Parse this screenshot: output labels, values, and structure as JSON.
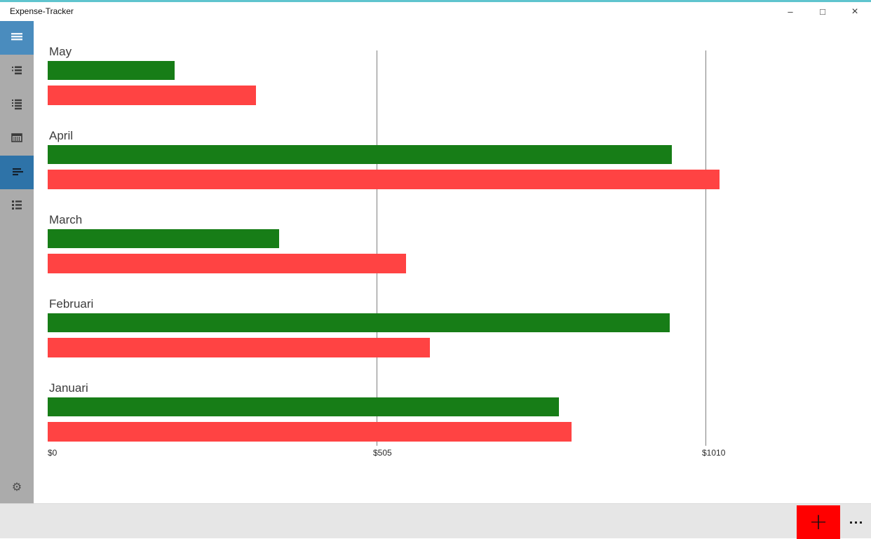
{
  "titlebar": {
    "title": "Expense-Tracker",
    "minimize_glyph": "–",
    "maximize_glyph": "□",
    "close_glyph": "×"
  },
  "colors": {
    "accent_top_border": "#5fc4ce",
    "sidebar_bg": "#ababab",
    "menu_button_bg": "#4a8cbe",
    "selected_item_bg": "#2e73a8",
    "bar_green": "#177d17",
    "bar_red": "#ff4343",
    "add_button_bg": "#ff0000",
    "commandbar_bg": "#e6e6e6",
    "gridline": "#7f7f7f"
  },
  "sidebar": {
    "icons": [
      "hamburger-menu",
      "bulleted-list",
      "detailed-list",
      "calendar",
      "bar-chart",
      "ordered-list",
      "settings-gear"
    ],
    "selected_index": 4
  },
  "chart_data": {
    "type": "bar",
    "orientation": "horizontal",
    "title": "",
    "categories": [
      "May",
      "April",
      "March",
      "Februari",
      "Januari"
    ],
    "series": [
      {
        "id": "green",
        "color": "#177d17",
        "values": [
          195,
          958,
          355,
          955,
          785
        ]
      },
      {
        "id": "red",
        "color": "#ff4343",
        "values": [
          320,
          1031,
          550,
          587,
          804
        ]
      }
    ],
    "x_ticks": [
      {
        "value": 0,
        "label": "$0"
      },
      {
        "value": 505,
        "label": "$505"
      },
      {
        "value": 1010,
        "label": "$1010"
      }
    ],
    "xlim": [
      0,
      1042
    ],
    "grid": "vertical-gridlines-at-ticks",
    "legend": "none"
  },
  "commandbar": {
    "add_label": "+",
    "more_icon": "ellipsis"
  }
}
